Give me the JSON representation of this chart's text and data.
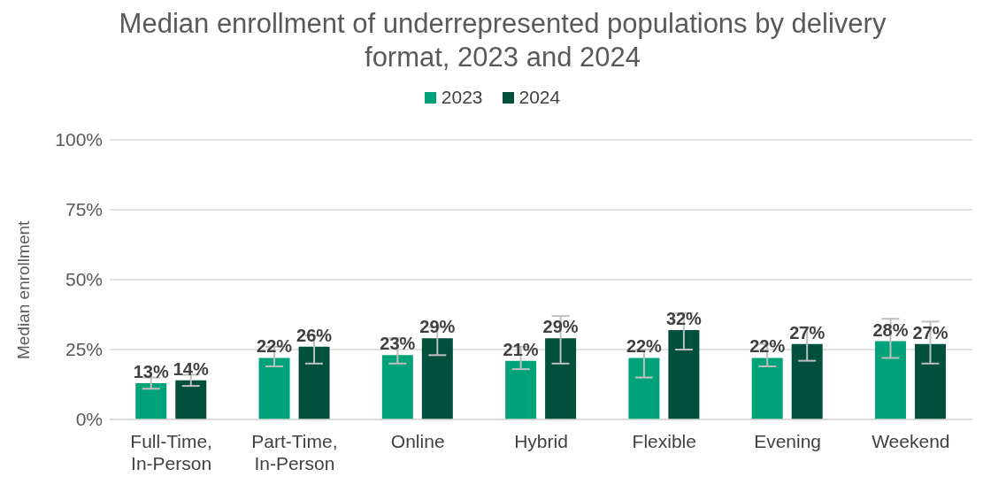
{
  "chart_data": {
    "type": "bar",
    "title": "Median enrollment of underrepresented populations by delivery format, 2023 and 2024",
    "ylabel": "Median enrollment",
    "categories": [
      "Full-Time, In-Person",
      "Part-Time, In-Person",
      "Online",
      "Hybrid",
      "Flexible",
      "Evening",
      "Weekend"
    ],
    "series": [
      {
        "name": "2023",
        "color": "#00a27a",
        "values": [
          13,
          22,
          23,
          21,
          22,
          22,
          28
        ],
        "value_labels": [
          "13%",
          "22%",
          "23%",
          "21%",
          "22%",
          "22%",
          "28%"
        ],
        "errors": [
          [
            11,
            15
          ],
          [
            19,
            26
          ],
          [
            20,
            29
          ],
          [
            18,
            26
          ],
          [
            15,
            25
          ],
          [
            19,
            27
          ],
          [
            22,
            36
          ]
        ]
      },
      {
        "name": "2024",
        "color": "#00503c",
        "values": [
          14,
          26,
          29,
          29,
          32,
          27,
          27
        ],
        "value_labels": [
          "14%",
          "26%",
          "29%",
          "29%",
          "32%",
          "27%",
          "27%"
        ],
        "errors": [
          [
            12,
            16
          ],
          [
            20,
            30
          ],
          [
            23,
            33
          ],
          [
            20,
            37
          ],
          [
            25,
            38
          ],
          [
            21,
            33
          ],
          [
            20,
            35
          ]
        ]
      }
    ],
    "ylim": [
      0,
      100
    ],
    "yticks": [
      {
        "value": 0,
        "label": "0%"
      },
      {
        "value": 25,
        "label": "25%"
      },
      {
        "value": 50,
        "label": "50%"
      },
      {
        "value": 75,
        "label": "75%"
      },
      {
        "value": 100,
        "label": "100%"
      }
    ],
    "grid": "y",
    "legend": "top"
  }
}
